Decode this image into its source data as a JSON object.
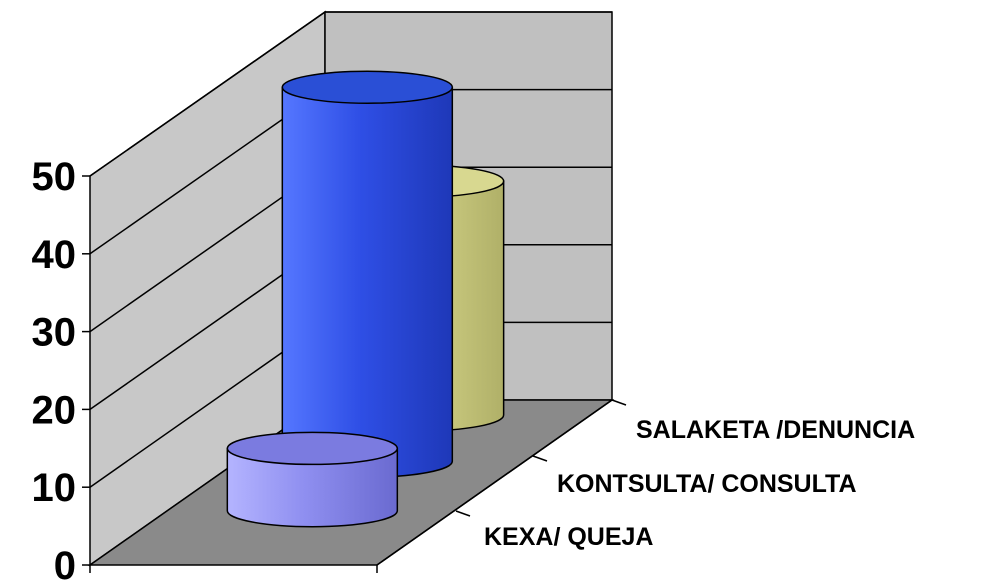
{
  "chart_data": {
    "type": "bar",
    "style": "3d-cylinder",
    "categories": [
      "KEXA/ QUEJA",
      "KONTSULTA/ CONSULTA",
      "SALAKETA /DENUNCIA"
    ],
    "values": [
      8,
      48,
      30
    ],
    "ylim": [
      0,
      50
    ],
    "yticks": [
      "0",
      "10",
      "20",
      "30",
      "40",
      "50"
    ],
    "grid": true,
    "legend": "none",
    "colors": {
      "series": [
        "#8f8ff0",
        "#2f4fe6",
        "#d6d68a"
      ],
      "tops": [
        "#7b7be0",
        "#2a4fd6",
        "#d8d890"
      ],
      "back_wall": "#c0c0c0",
      "side_wall": "#c8c8c8",
      "floor": "#8a8a8a",
      "gridline": "#000000"
    }
  }
}
